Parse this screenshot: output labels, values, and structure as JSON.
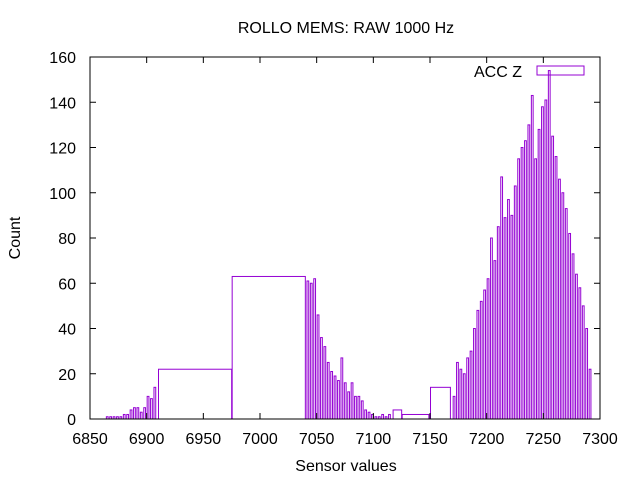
{
  "chart_data": {
    "type": "bar",
    "title": "ROLLO MEMS: RAW 1000 Hz",
    "xlabel": "Sensor values",
    "ylabel": "Count",
    "xlim": [
      6850,
      7300
    ],
    "ylim": [
      0,
      160
    ],
    "xticks": [
      6850,
      6900,
      6950,
      7000,
      7050,
      7100,
      7150,
      7200,
      7250,
      7300
    ],
    "yticks": [
      0,
      20,
      40,
      60,
      80,
      100,
      120,
      140,
      160
    ],
    "grid": false,
    "legend_position": "top-right",
    "colors": {
      "bars": "#9400d3",
      "axes": "#000000"
    },
    "series": [
      {
        "name": "ACC Z",
        "bins": [
          [
            6864,
            6866,
            1
          ],
          [
            6867,
            6869,
            1
          ],
          [
            6870,
            6872,
            1
          ],
          [
            6873,
            6875,
            1
          ],
          [
            6876,
            6878,
            1
          ],
          [
            6879,
            6881,
            2
          ],
          [
            6882,
            6884,
            2
          ],
          [
            6885,
            6887,
            4
          ],
          [
            6888,
            6890,
            5
          ],
          [
            6891,
            6893,
            5
          ],
          [
            6894,
            6896,
            3
          ],
          [
            6897,
            6899,
            5
          ],
          [
            6900,
            6902,
            10
          ],
          [
            6903,
            6905,
            9
          ],
          [
            6906,
            6908,
            14
          ],
          [
            6910,
            6975,
            22
          ],
          [
            6975,
            7040,
            63
          ],
          [
            7041,
            7043,
            61
          ],
          [
            7044,
            7046,
            60
          ],
          [
            7047,
            7049,
            62
          ],
          [
            7050,
            7052,
            46
          ],
          [
            7053,
            7055,
            36
          ],
          [
            7056,
            7058,
            32
          ],
          [
            7059,
            7061,
            25
          ],
          [
            7062,
            7064,
            21
          ],
          [
            7065,
            7067,
            19
          ],
          [
            7068,
            7070,
            17
          ],
          [
            7071,
            7073,
            27
          ],
          [
            7074,
            7076,
            16
          ],
          [
            7077,
            7079,
            12
          ],
          [
            7080,
            7082,
            16
          ],
          [
            7083,
            7085,
            10
          ],
          [
            7086,
            7088,
            10
          ],
          [
            7089,
            7091,
            8
          ],
          [
            7092,
            7094,
            4
          ],
          [
            7095,
            7097,
            3
          ],
          [
            7098,
            7100,
            2
          ],
          [
            7101,
            7103,
            1
          ],
          [
            7104,
            7106,
            1
          ],
          [
            7107,
            7109,
            2
          ],
          [
            7110,
            7112,
            1
          ],
          [
            7113,
            7115,
            2
          ],
          [
            7117,
            7125,
            4
          ],
          [
            7125,
            7149,
            2
          ],
          [
            7150,
            7168,
            14
          ],
          [
            7170,
            7172,
            10
          ],
          [
            7173,
            7175,
            25
          ],
          [
            7176,
            7178,
            22
          ],
          [
            7179,
            7181,
            20
          ],
          [
            7182,
            7184,
            27
          ],
          [
            7185,
            7187,
            30
          ],
          [
            7188,
            7190,
            40
          ],
          [
            7191,
            7193,
            48
          ],
          [
            7194,
            7196,
            52
          ],
          [
            7197,
            7199,
            57
          ],
          [
            7200,
            7202,
            62
          ],
          [
            7203,
            7205,
            80
          ],
          [
            7206,
            7208,
            70
          ],
          [
            7209,
            7211,
            85
          ],
          [
            7212,
            7214,
            107
          ],
          [
            7215,
            7217,
            89
          ],
          [
            7218,
            7220,
            97
          ],
          [
            7221,
            7223,
            90
          ],
          [
            7224,
            7226,
            103
          ],
          [
            7227,
            7229,
            115
          ],
          [
            7230,
            7232,
            120
          ],
          [
            7233,
            7235,
            123
          ],
          [
            7236,
            7238,
            130
          ],
          [
            7239,
            7241,
            143
          ],
          [
            7242,
            7244,
            115
          ],
          [
            7245,
            7247,
            128
          ],
          [
            7248,
            7250,
            138
          ],
          [
            7251,
            7253,
            141
          ],
          [
            7254,
            7256,
            154
          ],
          [
            7257,
            7259,
            125
          ],
          [
            7260,
            7262,
            116
          ],
          [
            7263,
            7265,
            106
          ],
          [
            7266,
            7268,
            100
          ],
          [
            7269,
            7271,
            93
          ],
          [
            7272,
            7274,
            82
          ],
          [
            7275,
            7277,
            73
          ],
          [
            7278,
            7280,
            64
          ],
          [
            7281,
            7283,
            58
          ],
          [
            7284,
            7286,
            50
          ],
          [
            7287,
            7289,
            40
          ],
          [
            7290,
            7292,
            22
          ]
        ]
      }
    ]
  }
}
